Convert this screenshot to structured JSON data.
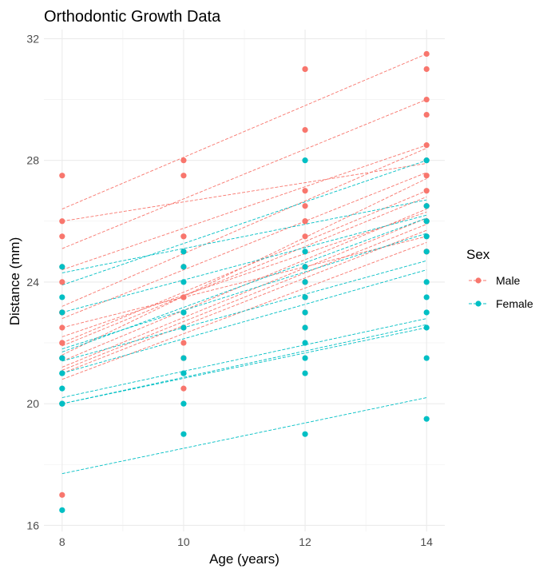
{
  "chart_data": {
    "type": "scatter",
    "title": "Orthodontic Growth Data",
    "xlabel": "Age (years)",
    "ylabel": "Distance (mm)",
    "xlim": [
      7.7,
      14.3
    ],
    "ylim": [
      15.8,
      32.3
    ],
    "xticks": [
      8,
      10,
      12,
      14
    ],
    "yticks": [
      16,
      20,
      24,
      28,
      32
    ],
    "grid": true,
    "legend": {
      "title": "Sex",
      "position": "right"
    },
    "x": [
      8,
      10,
      12,
      14
    ],
    "series": [
      {
        "name": "Male",
        "color": "#F8766D",
        "subjects": [
          {
            "id": "M01",
            "values": [
              26.0,
              25.0,
              29.0,
              31.0
            ],
            "fit": [
              26.4,
              31.5
            ]
          },
          {
            "id": "M02",
            "values": [
              21.5,
              22.5,
              23.0,
              26.5
            ],
            "fit": [
              21.1,
              25.9
            ]
          },
          {
            "id": "M03",
            "values": [
              23.0,
              22.5,
              24.0,
              27.5
            ],
            "fit": [
              22.2,
              26.3
            ]
          },
          {
            "id": "M04",
            "values": [
              25.5,
              27.5,
              26.5,
              27.0
            ],
            "fit": [
              26.0,
              27.9
            ]
          },
          {
            "id": "M05",
            "values": [
              20.0,
              23.5,
              22.5,
              26.0
            ],
            "fit": [
              20.8,
              25.3
            ]
          },
          {
            "id": "M06",
            "values": [
              24.5,
              25.5,
              27.0,
              28.5
            ],
            "fit": [
              24.4,
              28.5
            ]
          },
          {
            "id": "M07",
            "values": [
              22.0,
              22.0,
              24.5,
              26.5
            ],
            "fit": [
              21.2,
              26.1
            ]
          },
          {
            "id": "M08",
            "values": [
              24.0,
              21.5,
              24.5,
              25.5
            ],
            "fit": [
              22.5,
              25.5
            ]
          },
          {
            "id": "M09",
            "values": [
              23.0,
              20.5,
              31.0,
              26.0
            ],
            "fit": [
              21.6,
              27.4
            ]
          },
          {
            "id": "M10",
            "values": [
              27.5,
              28.0,
              31.0,
              31.5
            ],
            "fit": [
              25.1,
              30.0
            ]
          },
          {
            "id": "M11",
            "values": [
              23.0,
              23.0,
              23.5,
              25.0
            ],
            "fit": [
              21.9,
              26.8
            ]
          },
          {
            "id": "M12",
            "values": [
              21.5,
              23.5,
              24.0,
              28.0
            ],
            "fit": [
              23.2,
              28.4
            ]
          },
          {
            "id": "M13",
            "values": [
              17.0,
              24.5,
              26.0,
              29.5
            ],
            "fit": [
              22.0,
              27.0
            ]
          },
          {
            "id": "M14",
            "values": [
              22.5,
              25.5,
              25.5,
              26.0
            ],
            "fit": [
              21.4,
              26.4
            ]
          },
          {
            "id": "M15",
            "values": [
              23.0,
              24.5,
              26.0,
              30.0
            ],
            "fit": [
              22.8,
              27.6
            ]
          },
          {
            "id": "M16",
            "values": [
              22.0,
              21.5,
              23.5,
              25.0
            ],
            "fit": [
              21.0,
              25.7
            ]
          }
        ]
      },
      {
        "name": "Female",
        "color": "#00BFC4",
        "subjects": [
          {
            "id": "F01",
            "values": [
              21.0,
              20.0,
              21.5,
              23.0
            ],
            "fit": [
              20.2,
              22.8
            ]
          },
          {
            "id": "F02",
            "values": [
              21.0,
              21.5,
              24.0,
              25.5
            ],
            "fit": [
              21.4,
              24.7
            ]
          },
          {
            "id": "F03",
            "values": [
              20.5,
              24.0,
              24.5,
              26.0
            ],
            "fit": [
              23.0,
              26.2
            ]
          },
          {
            "id": "F04",
            "values": [
              23.5,
              24.5,
              25.0,
              26.5
            ],
            "fit": [
              23.9,
              28.0
            ]
          },
          {
            "id": "F05",
            "values": [
              21.5,
              23.0,
              22.5,
              23.5
            ],
            "fit": [
              20.0,
              22.5
            ]
          },
          {
            "id": "F06",
            "values": [
              20.0,
              21.0,
              21.0,
              22.5
            ],
            "fit": [
              17.7,
              20.2
            ]
          },
          {
            "id": "F07",
            "values": [
              21.5,
              22.5,
              23.0,
              25.0
            ],
            "fit": [
              21.0,
              24.4
            ]
          },
          {
            "id": "F08",
            "values": [
              23.0,
              23.0,
              23.5,
              24.0
            ],
            "fit": [
              21.8,
              25.6
            ]
          },
          {
            "id": "F09",
            "values": [
              20.0,
              21.0,
              22.0,
              21.5
            ],
            "fit": [
              20.0,
              22.6
            ]
          },
          {
            "id": "F10",
            "values": [
              16.5,
              19.0,
              19.0,
              19.5
            ],
            "fit": [
              21.7,
              26.1
            ]
          },
          {
            "id": "F11",
            "values": [
              24.5,
              25.0,
              28.0,
              28.0
            ],
            "fit": [
              24.3,
              26.7
            ]
          }
        ]
      }
    ]
  }
}
